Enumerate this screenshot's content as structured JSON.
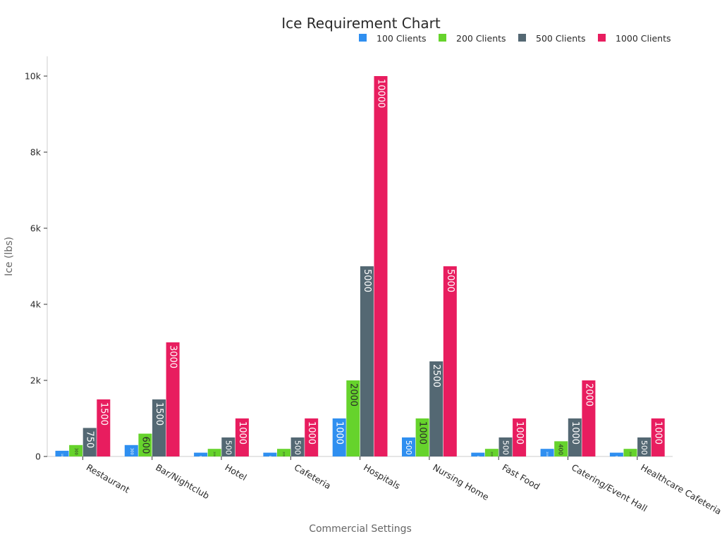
{
  "chart_data": {
    "type": "bar",
    "title": "Ice Requirement Chart",
    "xlabel": "Commercial Settings",
    "ylabel": "Ice (lbs)",
    "ylim": [
      0,
      10500
    ],
    "yticks": [
      0,
      2000,
      4000,
      6000,
      8000,
      10000
    ],
    "ytick_labels": [
      "0",
      "2k",
      "4k",
      "6k",
      "8k",
      "10k"
    ],
    "legend_position": "top-right",
    "categories": [
      "Restaurant",
      "Bar/Nightclub",
      "Hotel",
      "Cafeteria",
      "Hospitals",
      "Nursing Home",
      "Fast Food",
      "Catering/Event Hall",
      "Healthcare Cafeteria"
    ],
    "series": [
      {
        "name": "100 Clients",
        "color": "#2f8ff0",
        "values": [
          150,
          300,
          100,
          100,
          1000,
          500,
          100,
          200,
          100
        ]
      },
      {
        "name": "200 Clients",
        "color": "#66d32c",
        "values": [
          300,
          600,
          200,
          200,
          2000,
          1000,
          200,
          400,
          200
        ]
      },
      {
        "name": "500 Clients",
        "color": "#546873",
        "values": [
          750,
          1500,
          500,
          500,
          5000,
          2500,
          500,
          1000,
          500
        ]
      },
      {
        "name": "1000 Clients",
        "color": "#e81d5f",
        "values": [
          1500,
          3000,
          1000,
          1000,
          10000,
          5000,
          1000,
          2000,
          1000
        ]
      }
    ]
  }
}
